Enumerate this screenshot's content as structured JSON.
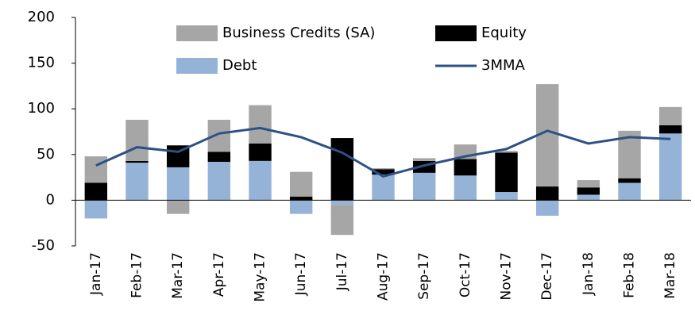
{
  "chart_data": {
    "type": "bar",
    "stacked": true,
    "categories": [
      "Jan-17",
      "Feb-17",
      "Mar-17",
      "Apr-17",
      "May-17",
      "Jun-17",
      "Jul-17",
      "Aug-17",
      "Sep-17",
      "Oct-17",
      "Nov-17",
      "Dec-17",
      "Jan-18",
      "Feb-18",
      "Mar-18"
    ],
    "series": [
      {
        "name": "Business Credits (SA)",
        "color": "#a6a6a6",
        "values": [
          29,
          45,
          -15,
          35,
          42,
          27,
          -33,
          1,
          3,
          16,
          2,
          112,
          8,
          52,
          20
        ]
      },
      {
        "name": "Equity",
        "color": "#000000",
        "values": [
          19,
          2,
          24,
          11,
          19,
          4,
          68,
          6,
          13,
          18,
          43,
          15,
          8,
          5,
          9
        ]
      },
      {
        "name": "Debt",
        "color": "#95b3d7",
        "values": [
          -20,
          41,
          36,
          42,
          43,
          -15,
          -5,
          28,
          30,
          27,
          9,
          -17,
          6,
          19,
          73
        ]
      },
      {
        "name": "3MMA",
        "type": "line",
        "color": "#2e5185",
        "values": [
          38,
          58,
          53,
          73,
          79,
          69,
          52,
          26,
          38,
          48,
          56,
          76,
          62,
          69,
          67
        ]
      }
    ],
    "ylim": [
      -50,
      200
    ],
    "yticks": [
      -50,
      0,
      50,
      100,
      150,
      200
    ],
    "grid": false
  }
}
